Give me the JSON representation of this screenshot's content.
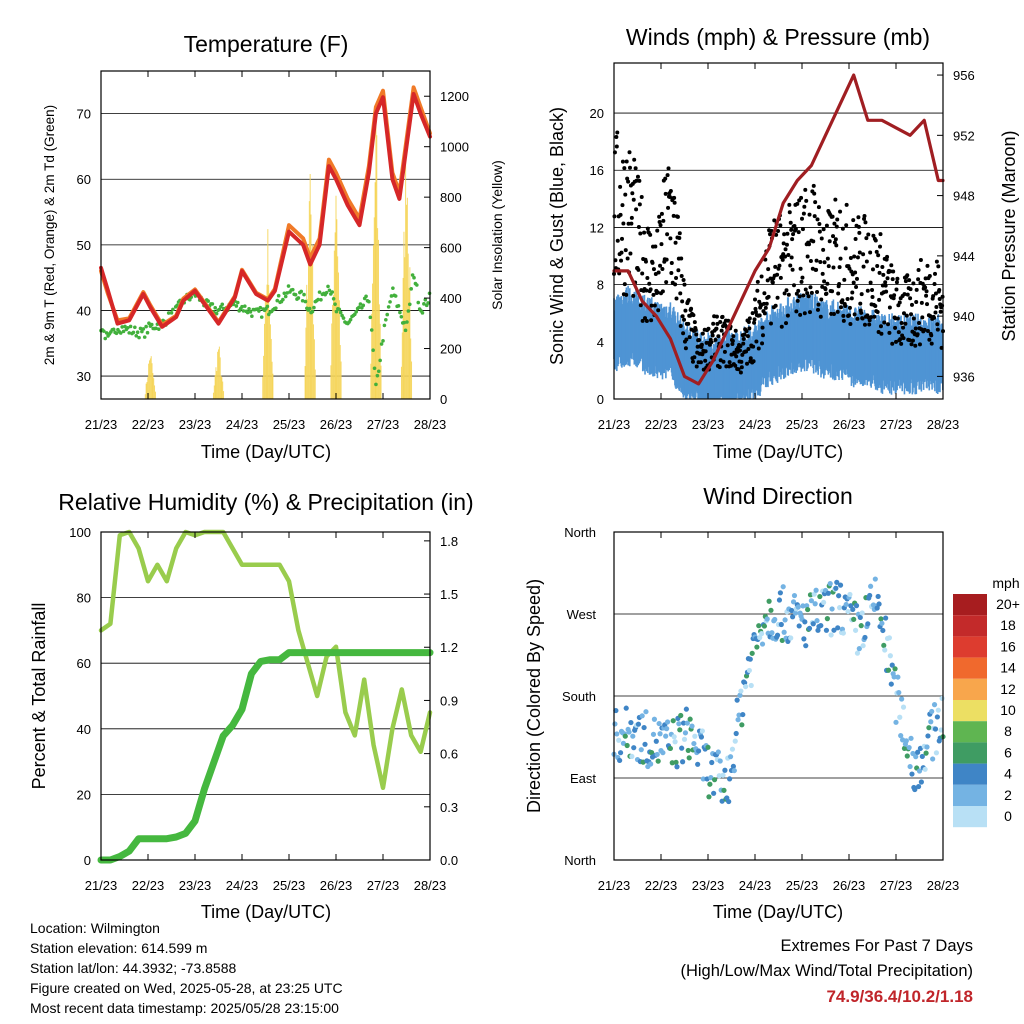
{
  "x_ticks": [
    "21/23",
    "22/23",
    "23/23",
    "24/23",
    "25/23",
    "26/23",
    "27/23",
    "28/23"
  ],
  "x_label": "Time (Day/UTC)",
  "chart_data": [
    {
      "type": "line",
      "title": "Temperature (F)",
      "xlabel": "Time (Day/UTC)",
      "ylabel": "2m & 9m T (Red, Orange) & 2m Td (Green)",
      "ylabel_right": "Solar Insolation (Yellow)",
      "ylim": [
        26.5,
        76.5
      ],
      "ylim_right": [
        0,
        1300
      ],
      "yticks": [
        30,
        40,
        50,
        60,
        70
      ],
      "yticks_right": [
        0,
        200,
        400,
        600,
        800,
        1000,
        1200
      ],
      "x": [
        0,
        0.15,
        0.35,
        0.6,
        0.9,
        1.05,
        1.3,
        1.6,
        1.75,
        2.0,
        2.3,
        2.5,
        2.85,
        3.0,
        3.3,
        3.55,
        3.7,
        4.0,
        4.3,
        4.45,
        4.65,
        4.85,
        5.0,
        5.25,
        5.5,
        5.7,
        5.85,
        6.0,
        6.2,
        6.35,
        6.5,
        6.65,
        6.8,
        7.0
      ],
      "series": [
        {
          "color": "#d62728",
          "values": [
            46.5,
            43,
            38,
            38.5,
            42.5,
            40.5,
            37.5,
            39,
            41.5,
            43,
            40,
            38,
            42,
            46,
            42.5,
            41.5,
            43,
            52,
            50,
            47,
            50,
            62,
            60,
            56,
            53,
            61,
            70,
            72.5,
            60,
            57,
            65,
            73,
            70,
            66.5
          ]
        },
        {
          "color": "#f07a28",
          "values": [
            46,
            42.5,
            38.5,
            38.8,
            42.8,
            40.8,
            37.8,
            39.2,
            41.8,
            43.2,
            40.2,
            38.2,
            42.2,
            46.2,
            42.7,
            41.7,
            43.3,
            53,
            51,
            48,
            51,
            63,
            61,
            57,
            54,
            62,
            71,
            73.5,
            61,
            58,
            66,
            74,
            71,
            67
          ]
        },
        {
          "color": "#42b03c",
          "values": [
            37.5,
            35.5,
            37.5,
            37,
            36.5,
            37.5,
            38,
            40,
            41.5,
            42.5,
            40.5,
            40,
            41,
            40.5,
            39.5,
            40,
            41,
            43,
            42,
            40,
            42,
            44,
            40,
            38,
            40,
            42,
            28,
            36,
            43,
            40,
            37,
            46,
            40,
            42
          ]
        },
        {
          "color": "#f5d55a",
          "values_right": [
            0,
            0,
            0,
            0,
            0,
            220,
            0,
            0,
            0,
            0,
            0,
            250,
            0,
            0,
            0,
            720,
            0,
            0,
            0,
            1110,
            0,
            0,
            1080,
            0,
            0,
            0,
            1250,
            0,
            0,
            0,
            1220,
            0,
            0,
            0
          ]
        }
      ]
    },
    {
      "type": "scatter",
      "title": "Winds (mph) & Pressure (mb)",
      "xlabel": "Time (Day/UTC)",
      "ylabel": "Sonic Wind & Gust (Blue, Black)",
      "ylabel_right": "Station Pressure (Maroon)",
      "ylim": [
        0,
        23.5
      ],
      "ylim_right": [
        934.5,
        956.8
      ],
      "yticks": [
        0,
        4,
        8,
        12,
        16,
        20
      ],
      "yticks_right": [
        936,
        940,
        944,
        948,
        952,
        956
      ],
      "x": [
        0,
        0.3,
        0.6,
        0.9,
        1.2,
        1.5,
        1.8,
        2.1,
        2.4,
        2.7,
        3.0,
        3.3,
        3.6,
        3.9,
        4.2,
        4.5,
        4.8,
        5.1,
        5.4,
        5.7,
        6.0,
        6.3,
        6.6,
        6.9,
        7.0
      ],
      "series": [
        {
          "color": "#000000",
          "values": [
            13,
            13,
            10,
            8,
            13,
            6,
            3,
            4,
            4,
            3,
            5,
            9,
            9,
            10,
            11,
            9,
            10,
            9,
            9,
            8,
            6,
            6,
            7,
            7,
            6
          ]
        },
        {
          "color": "#4f94d4",
          "values": [
            4.5,
            5,
            4.5,
            4,
            4,
            2.5,
            2,
            1.5,
            2,
            2,
            2.5,
            3.5,
            4,
            4.5,
            4.5,
            4,
            4,
            3.5,
            3.5,
            3,
            3,
            3,
            3,
            3,
            3
          ]
        },
        {
          "color": "#a01e22",
          "values_right": [
            943,
            943,
            941,
            940,
            938.5,
            936,
            935.5,
            937,
            939,
            941,
            943,
            944.5,
            947.5,
            949,
            950,
            952,
            954,
            956,
            953,
            953,
            952.5,
            952,
            953,
            949,
            949
          ]
        }
      ]
    },
    {
      "type": "line",
      "title": "Relative Humidity (%) & Precipitation (in)",
      "xlabel": "Time (Day/UTC)",
      "ylabel": "Percent & Total Rainfall",
      "ylim": [
        0,
        100
      ],
      "ylim_right": [
        0,
        1.85
      ],
      "yticks": [
        0,
        20,
        40,
        60,
        80,
        100
      ],
      "yticks_right": [
        "0.0",
        "0.3",
        "0.6",
        "0.9",
        "1.2",
        "1.5",
        "1.8"
      ],
      "x": [
        0,
        0.2,
        0.4,
        0.6,
        0.8,
        1.0,
        1.2,
        1.4,
        1.6,
        1.8,
        2.0,
        2.2,
        2.4,
        2.6,
        2.8,
        3.0,
        3.2,
        3.4,
        3.6,
        3.8,
        4.0,
        4.2,
        4.4,
        4.6,
        4.8,
        5.0,
        5.2,
        5.4,
        5.6,
        5.8,
        6.0,
        6.2,
        6.4,
        6.6,
        6.8,
        7.0
      ],
      "series": [
        {
          "color": "#99cc4d",
          "values": [
            70,
            72,
            99,
            100,
            95,
            85,
            90,
            85,
            95,
            100,
            99,
            100,
            100,
            100,
            95,
            90,
            90,
            90,
            90,
            90,
            85,
            70,
            60,
            50,
            62,
            65,
            45,
            38,
            55,
            35,
            22,
            40,
            52,
            38,
            33,
            45
          ]
        },
        {
          "color": "#45b83f",
          "values_right": [
            0,
            0,
            0.02,
            0.05,
            0.12,
            0.12,
            0.12,
            0.12,
            0.13,
            0.15,
            0.22,
            0.4,
            0.55,
            0.7,
            0.76,
            0.85,
            1.05,
            1.12,
            1.13,
            1.13,
            1.17,
            1.17,
            1.17,
            1.17,
            1.17,
            1.17,
            1.17,
            1.17,
            1.17,
            1.17,
            1.17,
            1.17,
            1.17,
            1.17,
            1.17,
            1.17
          ]
        }
      ]
    },
    {
      "type": "scatter",
      "title": "Wind Direction",
      "xlabel": "Time (Day/UTC)",
      "ylabel": "Direction (Colored By Speed)",
      "yticks": [
        "North",
        "East",
        "South",
        "West",
        "North"
      ],
      "ylim": [
        0,
        360
      ],
      "x": [
        0,
        0.4,
        0.8,
        1.2,
        1.6,
        2.0,
        2.4,
        2.8,
        3.2,
        3.6,
        4.0,
        4.4,
        4.8,
        5.2,
        5.6,
        6.0,
        6.4,
        6.8,
        7.0
      ],
      "values": [
        135,
        140,
        130,
        125,
        140,
        100,
        80,
        200,
        270,
        270,
        260,
        270,
        280,
        250,
        285,
        180,
        100,
        140,
        160
      ],
      "colorbar": {
        "title": "mph",
        "labels": [
          "20+",
          "18",
          "16",
          "14",
          "12",
          "10",
          "8",
          "6",
          "4",
          "2",
          "0"
        ],
        "colors": [
          "#a71d1f",
          "#c32a2a",
          "#dd3c2f",
          "#f0692d",
          "#f8a64c",
          "#ecdf63",
          "#5fb551",
          "#3f9c63",
          "#3f85c6",
          "#74b3e3",
          "#b8e0f5"
        ]
      }
    }
  ],
  "info": {
    "location": "Location: Wilmington",
    "elevation": "Station elevation: 614.599 m",
    "latlon": "Station lat/lon: 44.3932; -73.8588",
    "created": "Figure created on Wed, 2025-05-28, at 23:25 UTC",
    "recent": "Most recent data timestamp: 2025/05/28 23:15:00"
  },
  "extremes": {
    "title": "Extremes For Past 7 Days",
    "subtitle": "(High/Low/Max Wind/Total Precipitation)",
    "values": "74.9/36.4/10.2/1.18"
  }
}
